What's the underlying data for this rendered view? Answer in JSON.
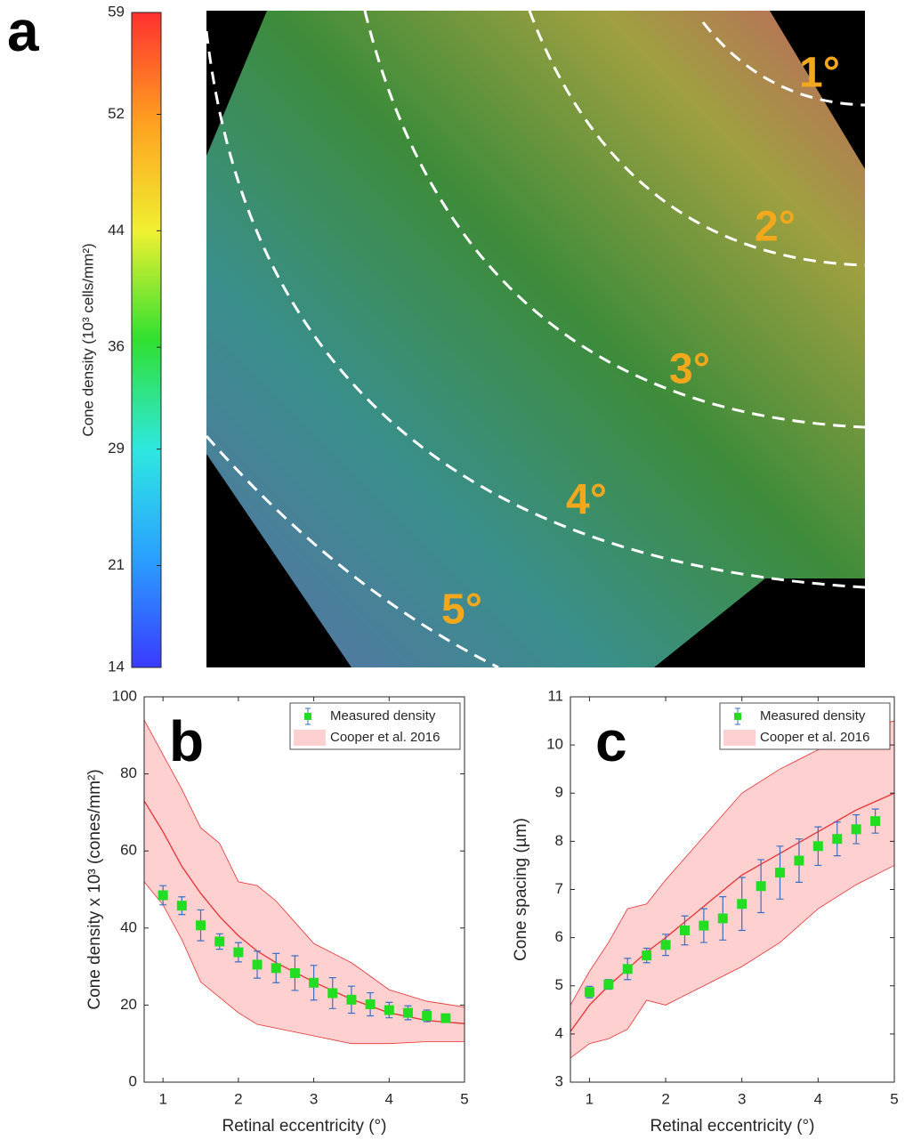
{
  "panel_a": {
    "label": "a",
    "colorbar": {
      "label": "Cone density (10³ cells/mm²)",
      "lim": [
        14,
        59
      ],
      "ticks": [
        14,
        21,
        29,
        36,
        44,
        52,
        59
      ],
      "colors": [
        "#3a3aff",
        "#2aa0ff",
        "#2ee8e0",
        "#30e030",
        "#f0f030",
        "#ffa020",
        "#ff3030"
      ]
    },
    "contour_labels": [
      "1°",
      "2°",
      "3°",
      "4°",
      "5°"
    ]
  },
  "chart_data": [
    {
      "type": "scatter",
      "label": "b",
      "x_label": "Retinal eccentricity (°)",
      "y_label": "Cone density x 10³ (cones/mm²)",
      "xlim": [
        0.75,
        5
      ],
      "xticks": [
        1,
        2,
        3,
        4,
        5
      ],
      "ylim": [
        0,
        100
      ],
      "yticks": [
        0,
        20,
        40,
        60,
        80,
        100
      ],
      "series": [
        {
          "name": "Measured density",
          "color": "#22dd22",
          "error_color": "#3a6fc4",
          "x": [
            1,
            1.25,
            1.5,
            1.75,
            2,
            2.25,
            2.5,
            2.75,
            3,
            3.25,
            3.5,
            3.75,
            4,
            4.25,
            4.5,
            4.75
          ],
          "values": [
            48.5,
            45.8,
            40.7,
            36.5,
            33.7,
            30.5,
            29.6,
            28.3,
            25.8,
            23.1,
            21.4,
            20.2,
            18.7,
            18.0,
            17.2,
            16.6
          ],
          "errors": [
            2.5,
            2.3,
            4,
            2,
            2.5,
            3.5,
            3.8,
            4.5,
            4.5,
            4,
            3.5,
            3,
            2,
            1.8,
            1.5,
            1
          ]
        },
        {
          "name": "Cooper et al. 2016",
          "color": "#ffd0d0",
          "line_color": "#e83030",
          "x": [
            0.75,
            1,
            1.25,
            1.5,
            1.75,
            2,
            2.25,
            2.5,
            3,
            3.5,
            4,
            4.5,
            5
          ],
          "values": [
            73,
            65,
            56,
            49,
            43,
            38,
            34,
            31,
            26,
            21.5,
            18,
            16,
            15.2
          ],
          "upper": [
            94,
            85,
            76,
            66,
            62,
            52,
            51,
            47,
            36,
            31,
            24,
            21,
            19.5
          ],
          "lower": [
            52,
            46,
            37,
            26,
            22,
            18,
            15,
            14,
            12,
            10,
            10,
            10.5,
            10.5
          ]
        }
      ]
    },
    {
      "type": "scatter",
      "label": "c",
      "x_label": "Retinal eccentricity (°)",
      "y_label": "Cone spacing (µm)",
      "xlim": [
        0.75,
        5
      ],
      "xticks": [
        1,
        2,
        3,
        4,
        5
      ],
      "ylim": [
        3,
        11
      ],
      "yticks": [
        3,
        4,
        5,
        6,
        7,
        8,
        9,
        10,
        11
      ],
      "series": [
        {
          "name": "Measured density",
          "color": "#22dd22",
          "error_color": "#3a6fc4",
          "x": [
            1,
            1.25,
            1.5,
            1.75,
            2,
            2.25,
            2.5,
            2.75,
            3,
            3.25,
            3.5,
            3.75,
            4,
            4.25,
            4.5,
            4.75
          ],
          "values": [
            4.87,
            5.03,
            5.35,
            5.63,
            5.85,
            6.15,
            6.25,
            6.4,
            6.7,
            7.07,
            7.35,
            7.6,
            7.9,
            8.05,
            8.25,
            8.42
          ],
          "errors": [
            0.12,
            0.1,
            0.22,
            0.15,
            0.22,
            0.3,
            0.35,
            0.45,
            0.55,
            0.55,
            0.55,
            0.45,
            0.4,
            0.35,
            0.3,
            0.25
          ]
        },
        {
          "name": "Cooper et al. 2016",
          "color": "#ffd0d0",
          "line_color": "#e83030",
          "x": [
            0.75,
            1,
            1.25,
            1.5,
            1.75,
            2,
            2.5,
            3,
            3.5,
            4,
            4.5,
            5
          ],
          "values": [
            4.05,
            4.6,
            5.0,
            5.35,
            5.7,
            6.0,
            6.65,
            7.3,
            7.75,
            8.2,
            8.65,
            9.0
          ],
          "upper": [
            4.6,
            5.3,
            5.9,
            6.6,
            6.7,
            7.2,
            8.1,
            9.0,
            9.5,
            9.9,
            10.3,
            10.5
          ],
          "lower": [
            3.5,
            3.8,
            3.9,
            4.1,
            4.7,
            4.6,
            5.0,
            5.4,
            5.9,
            6.6,
            7.1,
            7.5
          ]
        }
      ]
    }
  ]
}
